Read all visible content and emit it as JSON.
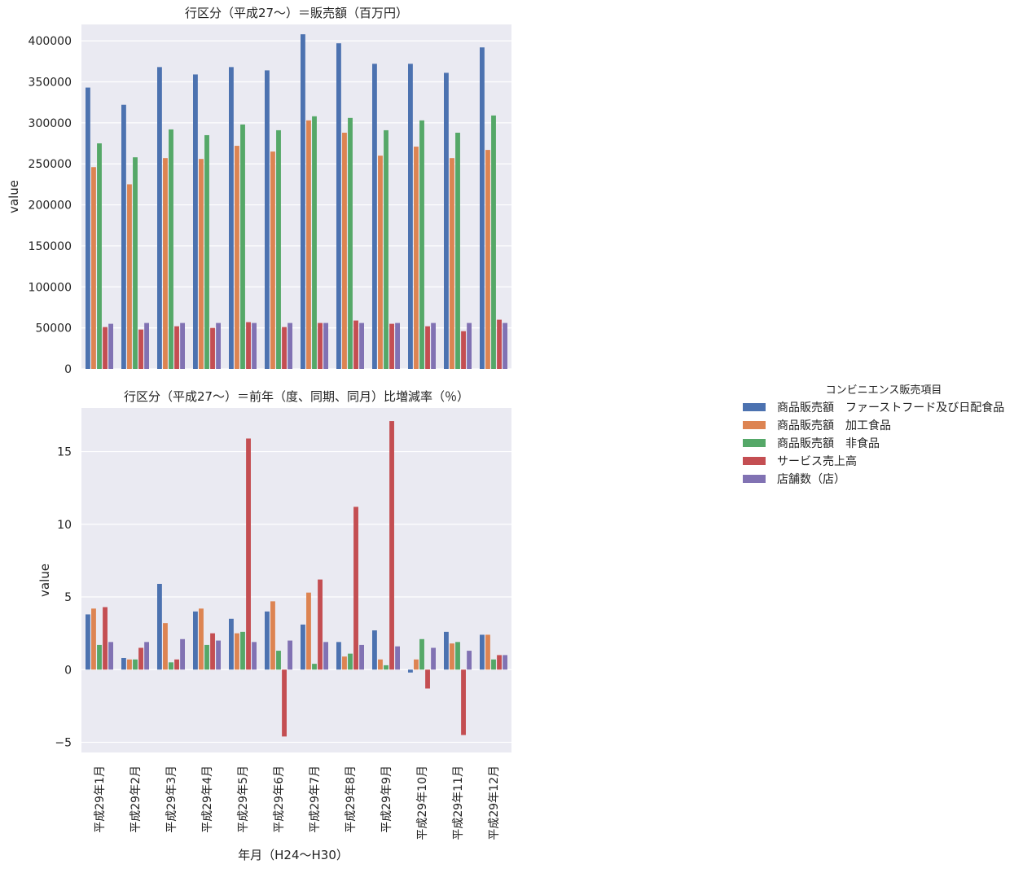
{
  "chart_data": [
    {
      "type": "bar",
      "title": "行区分（平成27～）＝販売額（百万円）",
      "xlabel": "",
      "ylabel": "value",
      "ylim": [
        0,
        420000
      ],
      "yticks": [
        0,
        50000,
        100000,
        150000,
        200000,
        250000,
        300000,
        350000,
        400000
      ],
      "ytick_labels": [
        "0",
        "50000",
        "100000",
        "150000",
        "200000",
        "250000",
        "300000",
        "350000",
        "400000"
      ],
      "grid": true,
      "categories": [
        "平成29年1月",
        "平成29年2月",
        "平成29年3月",
        "平成29年4月",
        "平成29年5月",
        "平成29年6月",
        "平成29年7月",
        "平成29年8月",
        "平成29年9月",
        "平成29年10月",
        "平成29年11月",
        "平成29年12月"
      ],
      "series": [
        {
          "name": "商品販売額　ファーストフード及び日配食品",
          "values": [
            343000,
            322000,
            368000,
            359000,
            368000,
            364000,
            408000,
            397000,
            372000,
            372000,
            361000,
            392000
          ]
        },
        {
          "name": "商品販売額　加工食品",
          "values": [
            246000,
            225000,
            257000,
            256000,
            272000,
            265000,
            303000,
            288000,
            260000,
            271000,
            257000,
            267000
          ]
        },
        {
          "name": "商品販売額　非食品",
          "values": [
            275000,
            258000,
            292000,
            285000,
            298000,
            291000,
            308000,
            306000,
            291000,
            303000,
            288000,
            309000
          ]
        },
        {
          "name": "サービス売上高",
          "values": [
            51000,
            48000,
            52000,
            50000,
            57000,
            51000,
            56000,
            59000,
            55000,
            52000,
            46000,
            60000
          ]
        },
        {
          "name": "店舗数（店）",
          "values": [
            55000,
            56000,
            56000,
            56000,
            56000,
            56000,
            56000,
            56000,
            56000,
            56000,
            56000,
            56000
          ]
        }
      ]
    },
    {
      "type": "bar",
      "title": "行区分（平成27～）＝前年（度、同期、同月）比増減率（％）",
      "xlabel": "年月（H24～H30）",
      "ylabel": "value",
      "ylim": [
        -5.7,
        18.0
      ],
      "yticks": [
        -5,
        0,
        5,
        10,
        15
      ],
      "ytick_labels": [
        "−5",
        "0",
        "5",
        "10",
        "15"
      ],
      "grid": true,
      "categories": [
        "平成29年1月",
        "平成29年2月",
        "平成29年3月",
        "平成29年4月",
        "平成29年5月",
        "平成29年6月",
        "平成29年7月",
        "平成29年8月",
        "平成29年9月",
        "平成29年10月",
        "平成29年11月",
        "平成29年12月"
      ],
      "series": [
        {
          "name": "商品販売額　ファーストフード及び日配食品",
          "values": [
            3.8,
            0.8,
            5.9,
            4.0,
            3.5,
            4.0,
            3.1,
            1.9,
            2.7,
            -0.2,
            2.6,
            2.4
          ]
        },
        {
          "name": "商品販売額　加工食品",
          "values": [
            4.2,
            0.7,
            3.2,
            4.2,
            2.5,
            4.7,
            5.3,
            0.9,
            0.7,
            0.7,
            1.8,
            2.4
          ]
        },
        {
          "name": "商品販売額　非食品",
          "values": [
            1.7,
            0.7,
            0.5,
            1.7,
            2.6,
            1.3,
            0.4,
            1.1,
            0.3,
            2.1,
            1.9,
            0.7
          ]
        },
        {
          "name": "サービス売上高",
          "values": [
            4.3,
            1.5,
            0.7,
            2.5,
            15.9,
            -4.6,
            6.2,
            11.2,
            17.1,
            -1.3,
            -4.5,
            1.0
          ]
        },
        {
          "name": "店舗数（店）",
          "values": [
            1.9,
            1.9,
            2.1,
            2.0,
            1.9,
            2.0,
            1.9,
            1.7,
            1.6,
            1.5,
            1.3,
            1.0
          ]
        }
      ]
    }
  ],
  "legend": {
    "title": "コンビニエンス販売項目",
    "placement": "right",
    "items": [
      {
        "label": "商品販売額　ファーストフード及び日配食品",
        "color": "#4c72b0"
      },
      {
        "label": "商品販売額　加工食品",
        "color": "#dd8452"
      },
      {
        "label": "商品販売額　非食品",
        "color": "#55a868"
      },
      {
        "label": "サービス売上高",
        "color": "#c44e52"
      },
      {
        "label": "店舗数（店）",
        "color": "#8172b3"
      }
    ]
  },
  "colors": {
    "axes_background": "#eaeaf2",
    "grid": "#ffffff",
    "series": [
      "#4c72b0",
      "#dd8452",
      "#55a868",
      "#c44e52",
      "#8172b3"
    ]
  }
}
